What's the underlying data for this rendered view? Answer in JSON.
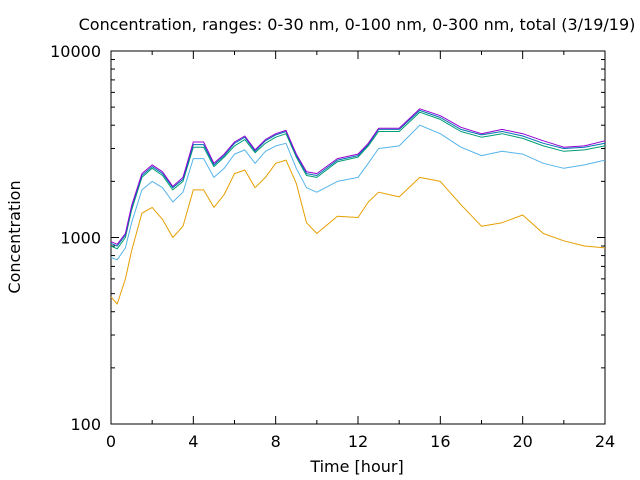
{
  "chart_data": {
    "type": "line",
    "title": "Concentration, ranges: 0-30 nm, 0-100 nm, 0-300 nm, total (3/19/19)",
    "xlabel": "Time [hour]",
    "ylabel": "Concentration",
    "xlim": [
      0,
      24
    ],
    "ylim": [
      100,
      10000
    ],
    "yscale": "log",
    "xticks": [
      0,
      4,
      8,
      12,
      16,
      20,
      24
    ],
    "xtick_labels": [
      "0",
      "4",
      "8",
      "12",
      "16",
      "20",
      "24"
    ],
    "yticks": [
      100,
      1000,
      10000
    ],
    "ytick_labels": [
      "100",
      "1000",
      "10000"
    ],
    "grid": false,
    "legend": "none",
    "series": [
      {
        "color": "#e69f00",
        "x": [
          0,
          0.3,
          0.7,
          1,
          1.5,
          2,
          2.5,
          3,
          3.5,
          4,
          4.5,
          5,
          5.5,
          6,
          6.5,
          7,
          7.5,
          8,
          8.5,
          9,
          9.5,
          10,
          11,
          12,
          12.5,
          13,
          14,
          15,
          16,
          17,
          18,
          19,
          20,
          21,
          22,
          23,
          24
        ],
        "values": [
          480,
          440,
          600,
          850,
          1350,
          1450,
          1250,
          1000,
          1150,
          1800,
          1800,
          1450,
          1700,
          2200,
          2300,
          1850,
          2100,
          2500,
          2600,
          1950,
          1200,
          1050,
          1300,
          1280,
          1550,
          1750,
          1650,
          2100,
          2000,
          1500,
          1150,
          1200,
          1320,
          1050,
          960,
          900,
          880
        ]
      },
      {
        "color": "#56b4e9",
        "x": [
          0,
          0.3,
          0.7,
          1,
          1.5,
          2,
          2.5,
          3,
          3.5,
          4,
          4.5,
          5,
          5.5,
          6,
          6.5,
          7,
          7.5,
          8,
          8.5,
          9,
          9.5,
          10,
          11,
          12,
          12.5,
          13,
          14,
          15,
          16,
          17,
          18,
          19,
          20,
          21,
          22,
          23,
          24
        ],
        "values": [
          780,
          760,
          880,
          1200,
          1800,
          2000,
          1850,
          1550,
          1750,
          2650,
          2650,
          2100,
          2350,
          2800,
          2950,
          2500,
          2900,
          3100,
          3200,
          2350,
          1850,
          1750,
          2000,
          2100,
          2500,
          3000,
          3100,
          4000,
          3600,
          3050,
          2750,
          2900,
          2800,
          2500,
          2350,
          2450,
          2600
        ]
      },
      {
        "color": "#009e73",
        "x": [
          0,
          0.3,
          0.7,
          1,
          1.5,
          2,
          2.5,
          3,
          3.5,
          4,
          4.5,
          5,
          5.5,
          6,
          6.5,
          7,
          7.5,
          8,
          8.5,
          9,
          9.5,
          10,
          11,
          12,
          12.5,
          13,
          14,
          15,
          16,
          17,
          18,
          19,
          20,
          21,
          22,
          23,
          24
        ],
        "values": [
          900,
          870,
          1000,
          1400,
          2100,
          2350,
          2150,
          1800,
          2000,
          3050,
          3050,
          2400,
          2700,
          3100,
          3350,
          2850,
          3200,
          3450,
          3600,
          2700,
          2150,
          2100,
          2550,
          2700,
          3100,
          3700,
          3700,
          4700,
          4300,
          3700,
          3450,
          3600,
          3400,
          3100,
          2900,
          2950,
          3100
        ]
      },
      {
        "color": "#0072b2",
        "x": [
          0,
          0.3,
          0.7,
          1,
          1.5,
          2,
          2.5,
          3,
          3.5,
          4,
          4.5,
          5,
          5.5,
          6,
          6.5,
          7,
          7.5,
          8,
          8.5,
          9,
          9.5,
          10,
          11,
          12,
          12.5,
          13,
          14,
          15,
          16,
          17,
          18,
          19,
          20,
          21,
          22,
          23,
          24
        ],
        "values": [
          930,
          900,
          1030,
          1450,
          2150,
          2400,
          2200,
          1850,
          2050,
          3150,
          3150,
          2450,
          2750,
          3200,
          3450,
          2900,
          3300,
          3550,
          3700,
          2750,
          2200,
          2150,
          2600,
          2750,
          3150,
          3800,
          3800,
          4800,
          4400,
          3800,
          3550,
          3700,
          3500,
          3200,
          3000,
          3050,
          3200
        ]
      },
      {
        "color": "#9400d3",
        "x": [
          0,
          0.3,
          0.7,
          1,
          1.5,
          2,
          2.5,
          3,
          3.5,
          4,
          4.5,
          5,
          5.5,
          6,
          6.5,
          7,
          7.5,
          8,
          8.5,
          9,
          9.5,
          10,
          11,
          12,
          12.5,
          13,
          14,
          15,
          16,
          17,
          18,
          19,
          20,
          21,
          22,
          23,
          24
        ],
        "values": [
          950,
          920,
          1050,
          1480,
          2200,
          2450,
          2250,
          1880,
          2100,
          3250,
          3250,
          2500,
          2800,
          3250,
          3500,
          2950,
          3350,
          3600,
          3750,
          2800,
          2250,
          2200,
          2650,
          2800,
          3200,
          3850,
          3850,
          4900,
          4500,
          3900,
          3600,
          3800,
          3600,
          3300,
          3050,
          3100,
          3300
        ]
      }
    ]
  }
}
